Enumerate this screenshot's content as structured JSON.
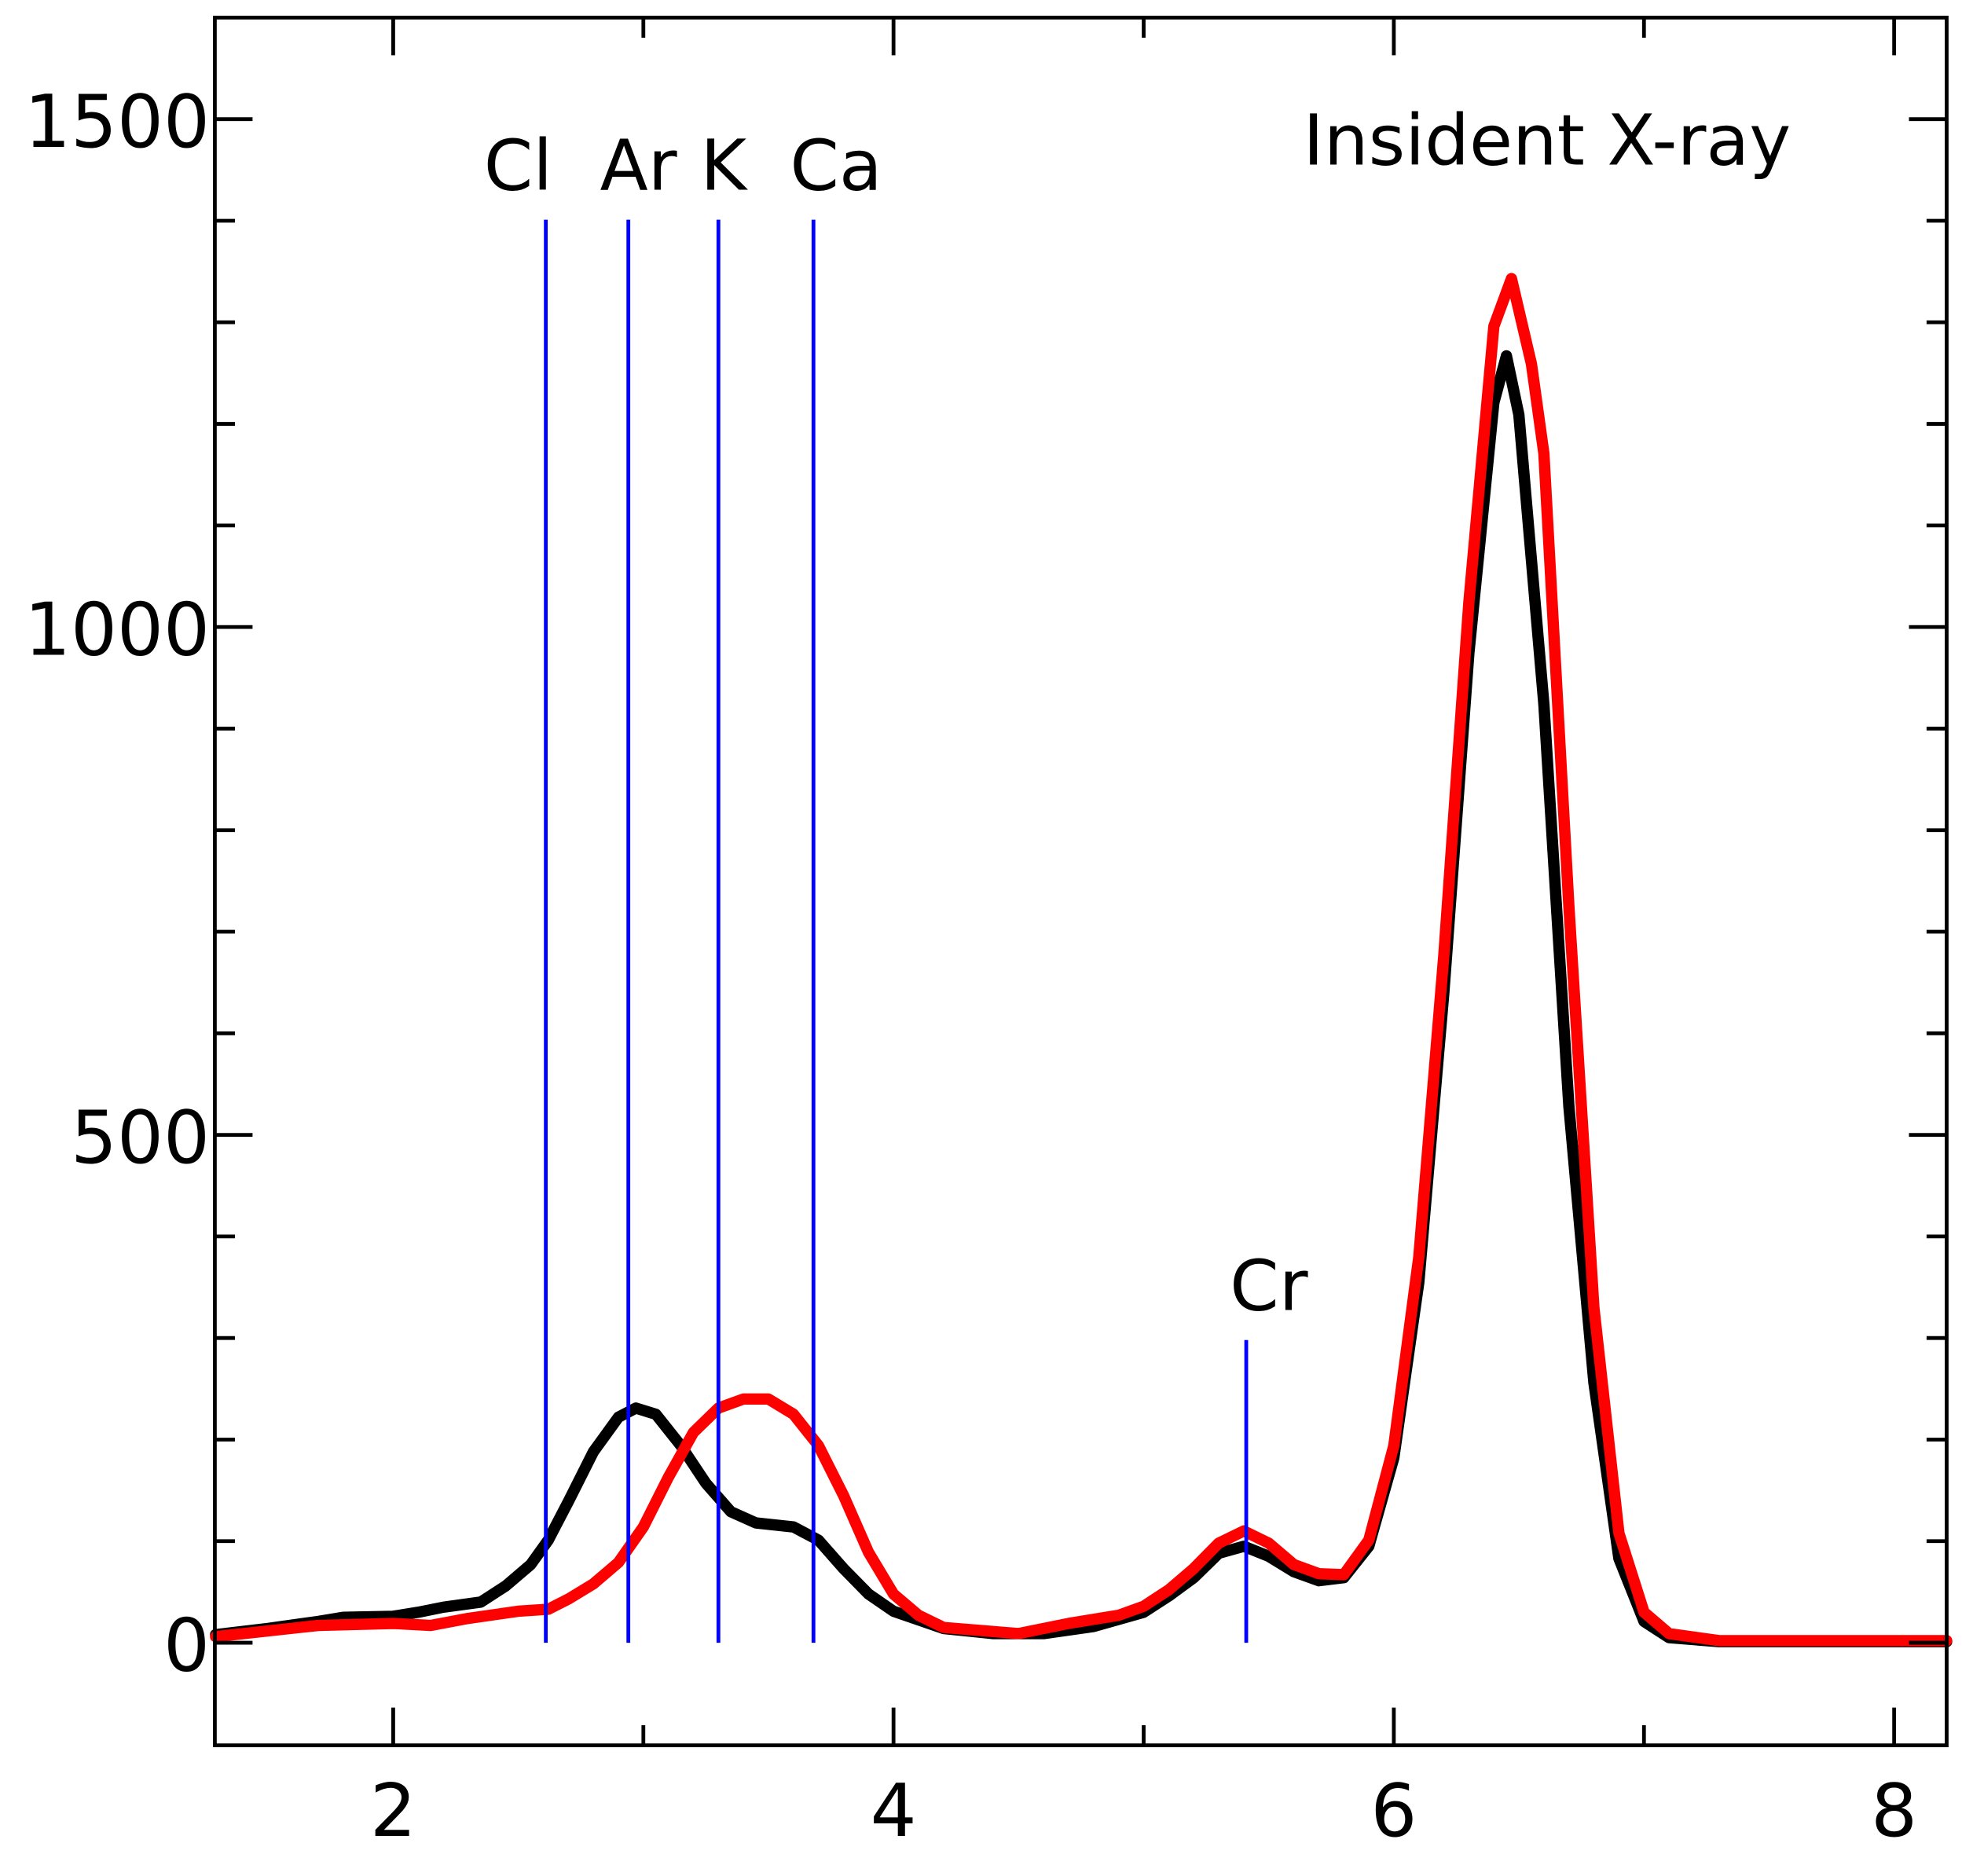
{
  "chart_data": {
    "type": "line",
    "title": "",
    "xlabel": "",
    "ylabel": "",
    "xlim": [
      1.287,
      8.21
    ],
    "ylim": [
      -101,
      1600
    ],
    "grid": false,
    "x_ticks": [
      2,
      4,
      6,
      8
    ],
    "x_tick_labels": [
      "2",
      "4",
      "6",
      "8"
    ],
    "x_minor_ticks": [
      3,
      5,
      7
    ],
    "y_ticks": [
      0,
      500,
      1000,
      1500
    ],
    "y_tick_labels": [
      "0",
      "500",
      "1000",
      "1500"
    ],
    "y_minor_step": 100,
    "annotation": "Insident X-ray",
    "element_lines": [
      {
        "label": "Cl",
        "x": 2.61,
        "ymin": 0,
        "ymax": 1401
      },
      {
        "label": "Ar",
        "x": 2.94,
        "ymin": 0,
        "ymax": 1401
      },
      {
        "label": "K",
        "x": 3.3,
        "ymin": 0,
        "ymax": 1401
      },
      {
        "label": "Ca",
        "x": 3.68,
        "ymin": 0,
        "ymax": 1401
      },
      {
        "label": "Cr",
        "x": 5.41,
        "ymin": 0,
        "ymax": 298
      }
    ],
    "line_color": "#0000ff",
    "series": [
      {
        "name": "black",
        "color": "#000000",
        "x": [
          1.29,
          1.5,
          1.7,
          1.8,
          2.0,
          2.1,
          2.2,
          2.35,
          2.45,
          2.55,
          2.62,
          2.7,
          2.8,
          2.9,
          2.97,
          3.05,
          3.15,
          3.25,
          3.35,
          3.45,
          3.6,
          3.7,
          3.8,
          3.9,
          4.0,
          4.2,
          4.4,
          4.6,
          4.8,
          5.0,
          5.1,
          5.2,
          5.3,
          5.4,
          5.5,
          5.6,
          5.7,
          5.8,
          5.9,
          6.0,
          6.1,
          6.2,
          6.3,
          6.4,
          6.45,
          6.5,
          6.6,
          6.7,
          6.8,
          6.9,
          7.0,
          7.1,
          7.3,
          8.21
        ],
        "y": [
          8,
          14,
          21,
          25,
          26,
          30,
          35,
          40,
          56,
          77,
          101,
          139,
          188,
          222,
          231,
          225,
          194,
          157,
          129,
          118,
          114,
          101,
          73,
          48,
          31,
          14,
          9,
          9,
          16,
          30,
          46,
          64,
          88,
          95,
          85,
          70,
          61,
          64,
          95,
          182,
          355,
          640,
          974,
          1221,
          1267,
          1209,
          924,
          528,
          256,
          83,
          21,
          5,
          1,
          1
        ]
      },
      {
        "name": "red",
        "color": "#ff0000",
        "x": [
          1.29,
          1.7,
          2.0,
          2.15,
          2.3,
          2.5,
          2.62,
          2.7,
          2.8,
          2.9,
          3.0,
          3.1,
          3.2,
          3.3,
          3.4,
          3.5,
          3.6,
          3.7,
          3.8,
          3.9,
          4.0,
          4.1,
          4.2,
          4.5,
          4.7,
          4.9,
          5.0,
          5.1,
          5.2,
          5.3,
          5.4,
          5.5,
          5.6,
          5.7,
          5.8,
          5.9,
          6.0,
          6.1,
          6.2,
          6.3,
          6.4,
          6.47,
          6.55,
          6.6,
          6.7,
          6.8,
          6.9,
          7.0,
          7.1,
          7.3,
          8.21
        ],
        "y": [
          6,
          17,
          19,
          17,
          24,
          31,
          33,
          43,
          58,
          79,
          114,
          163,
          207,
          231,
          240,
          240,
          225,
          194,
          145,
          89,
          48,
          27,
          15,
          9,
          19,
          27,
          36,
          52,
          73,
          98,
          110,
          98,
          77,
          68,
          67,
          101,
          194,
          380,
          677,
          1024,
          1296,
          1343,
          1259,
          1171,
          725,
          330,
          108,
          30,
          9,
          2,
          2
        ]
      }
    ]
  }
}
